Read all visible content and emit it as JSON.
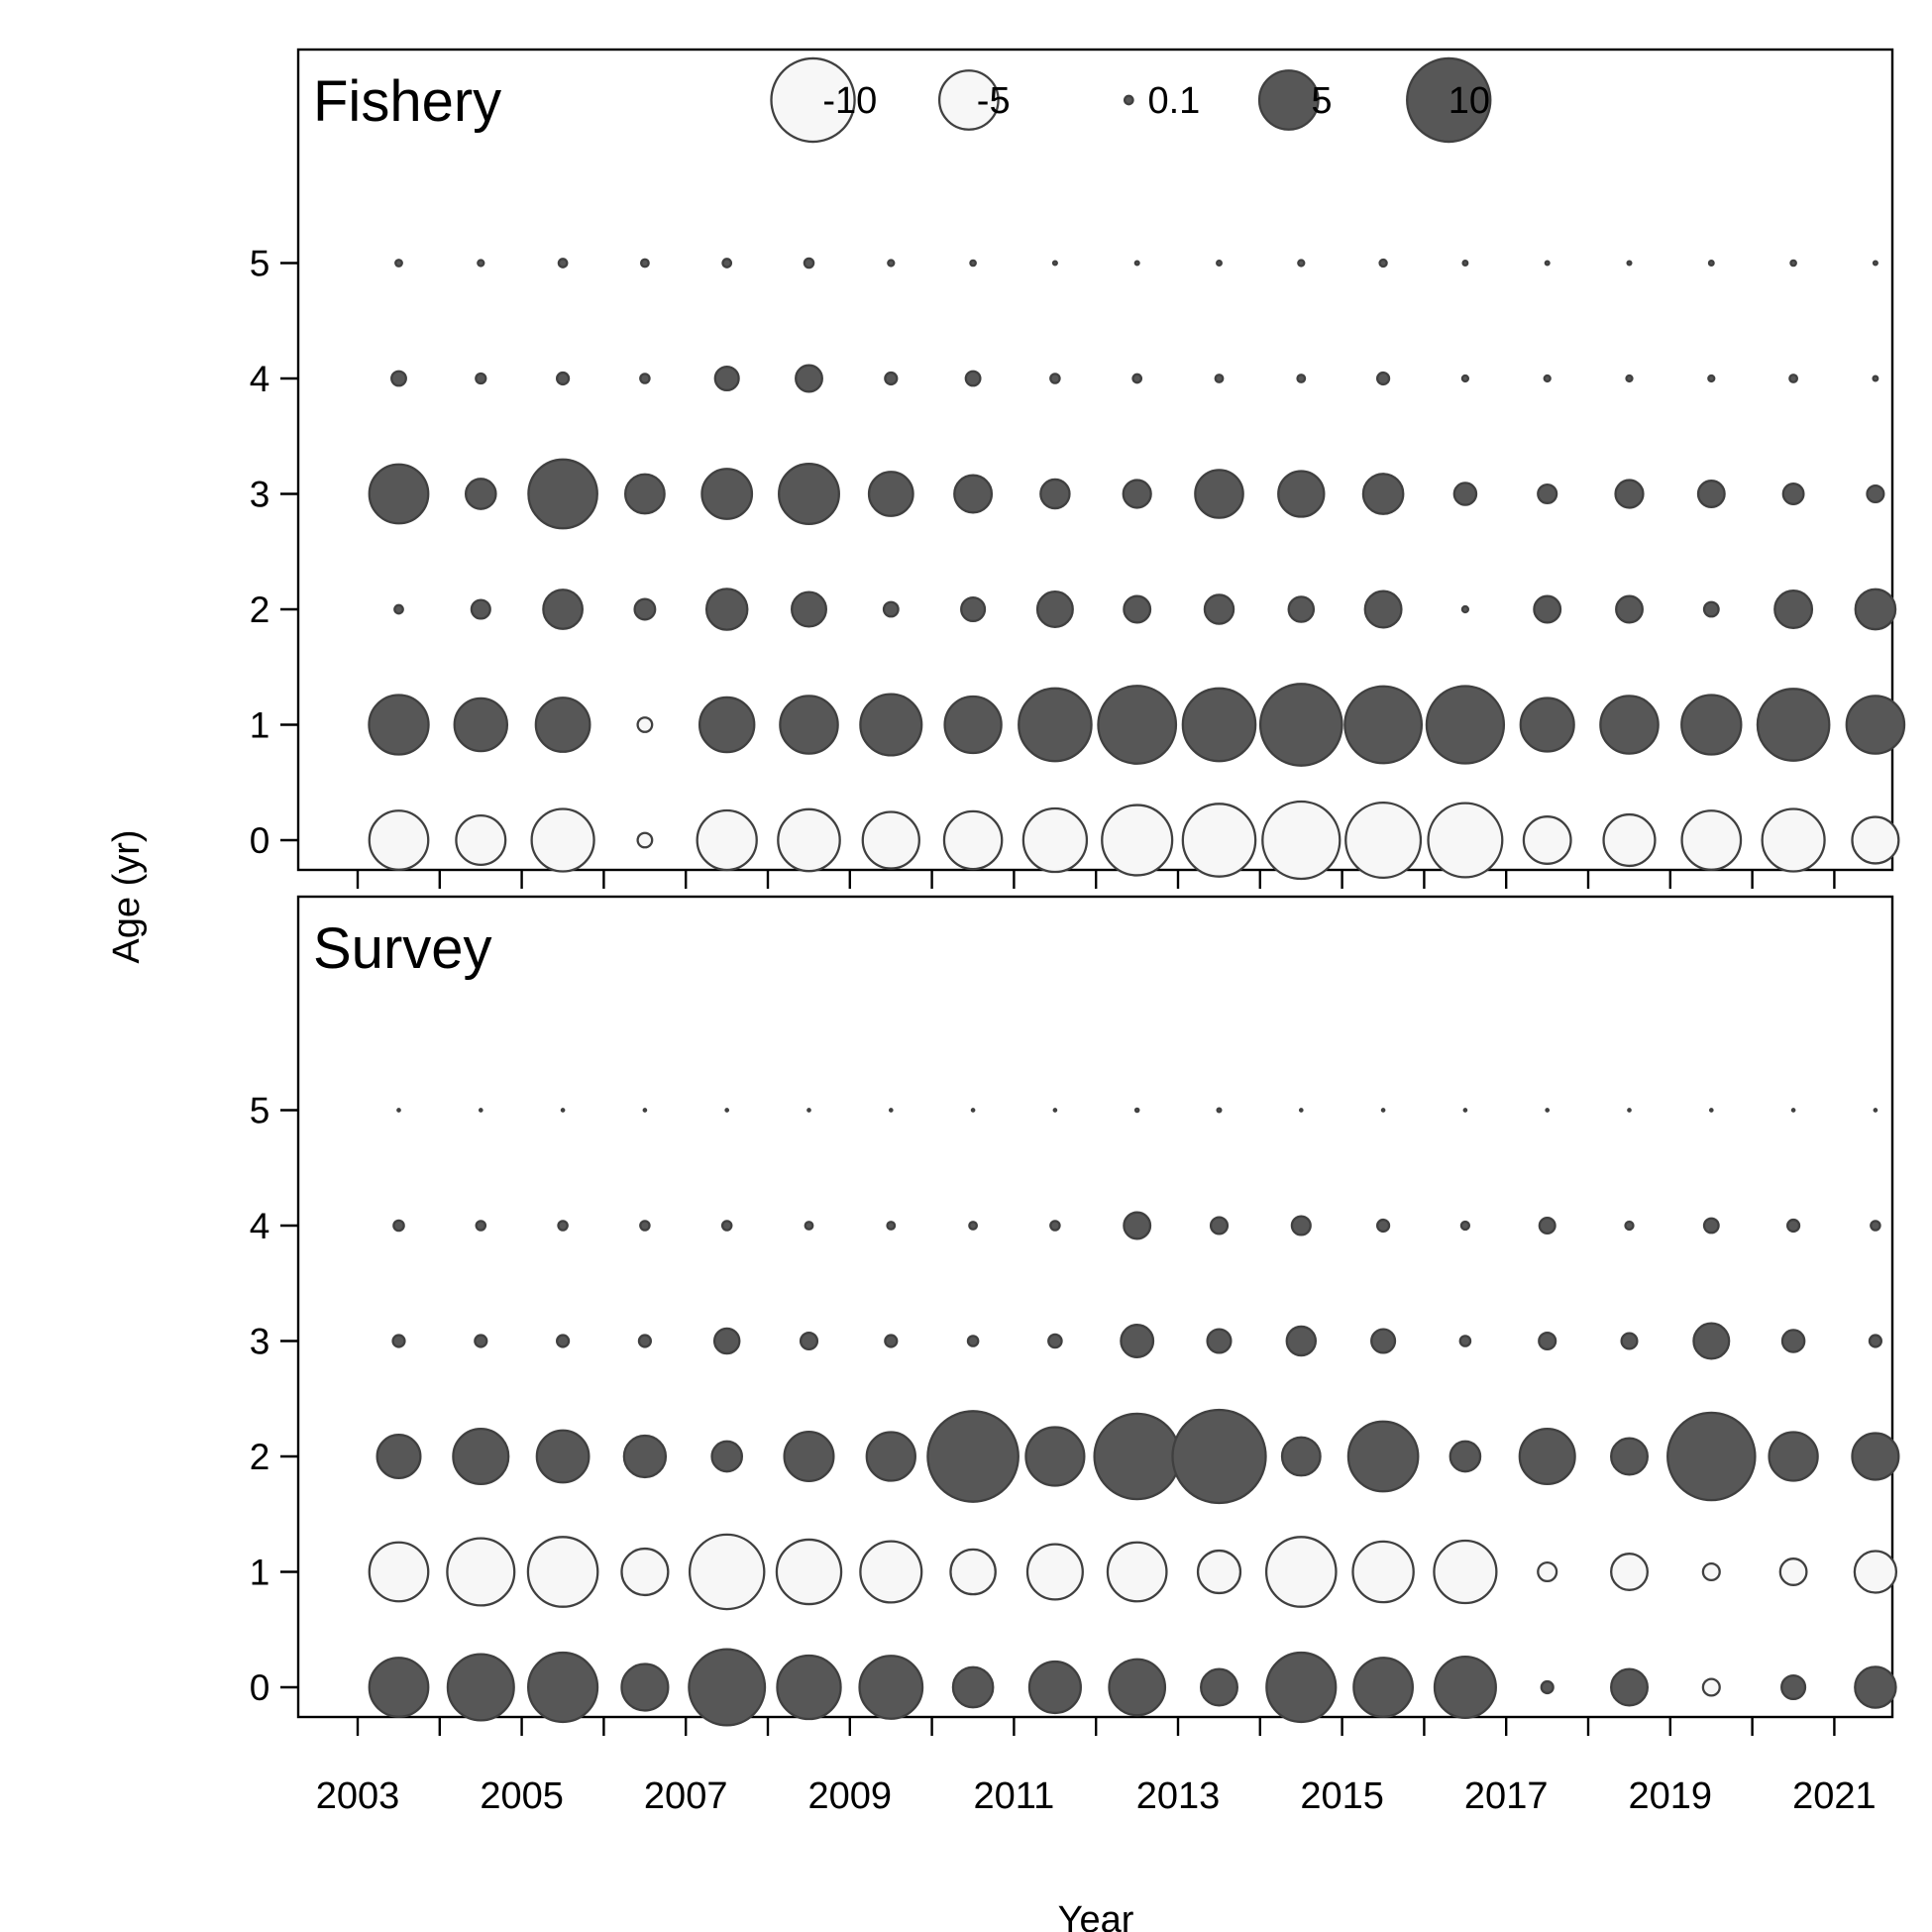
{
  "chart_data": [
    {
      "type": "bubble",
      "panel_label": "Fishery",
      "ylim": [
        0,
        5
      ],
      "yticks": [
        0,
        1,
        2,
        3,
        4,
        5
      ],
      "legend": {
        "labels": [
          "-10",
          "-5",
          "0.1",
          "5",
          "10"
        ],
        "values": [
          -10,
          -5,
          0.1,
          5,
          10
        ]
      },
      "ages": [
        0,
        1,
        2,
        3,
        4,
        5
      ],
      "years": [
        2003,
        2004,
        2005,
        2006,
        2007,
        2008,
        2009,
        2010,
        2011,
        2012,
        2013,
        2014,
        2015,
        2016,
        2017,
        2018,
        2019,
        2020,
        2021
      ],
      "residuals": [
        [
          -5.0,
          -3.5,
          -5.6,
          -0.3,
          -5.1,
          -5.5,
          -4.6,
          -4.8,
          -5.8,
          -7.1,
          -7.6,
          -8.6,
          -8.1,
          -7.9,
          -3.2,
          -3.8,
          -5.0,
          -5.6,
          -3.1
        ],
        [
          5.1,
          4.0,
          4.2,
          -0.3,
          4.3,
          4.8,
          5.4,
          4.6,
          7.6,
          8.7,
          7.6,
          9.6,
          8.5,
          8.6,
          4.1,
          4.8,
          5.1,
          7.4,
          4.8
        ],
        [
          0.1,
          0.5,
          2.2,
          0.6,
          2.4,
          1.7,
          0.3,
          0.8,
          1.8,
          1.0,
          1.2,
          0.9,
          1.9,
          0.05,
          1.0,
          1.0,
          0.3,
          2.0,
          2.3
        ],
        [
          5.0,
          1.3,
          6.8,
          2.2,
          3.6,
          5.2,
          2.8,
          2.0,
          1.2,
          1.1,
          3.3,
          3.0,
          2.3,
          0.7,
          0.5,
          1.1,
          1.0,
          0.6,
          0.4
        ],
        [
          0.3,
          0.14,
          0.2,
          0.12,
          0.8,
          1.0,
          0.2,
          0.3,
          0.12,
          0.1,
          0.08,
          0.08,
          0.2,
          0.05,
          0.05,
          0.05,
          0.05,
          0.08,
          0.03
        ],
        [
          0.06,
          0.05,
          0.1,
          0.08,
          0.1,
          0.12,
          0.05,
          0.04,
          0.02,
          0.02,
          0.03,
          0.05,
          0.07,
          0.03,
          0.02,
          0.02,
          0.03,
          0.04,
          0.02
        ]
      ]
    },
    {
      "type": "bubble",
      "panel_label": "Survey",
      "ylim": [
        0,
        5
      ],
      "yticks": [
        0,
        1,
        2,
        3,
        4,
        5
      ],
      "xticks": [
        2003,
        2005,
        2007,
        2009,
        2011,
        2013,
        2015,
        2017,
        2019,
        2021
      ],
      "xlabel": "Year",
      "ylabel": "Age (yr)",
      "ages": [
        0,
        1,
        2,
        3,
        4,
        5
      ],
      "years": [
        2003,
        2004,
        2005,
        2006,
        2007,
        2008,
        2009,
        2010,
        2011,
        2012,
        2013,
        2014,
        2015,
        2016,
        2017,
        2018,
        2019,
        2020,
        2021
      ],
      "residuals": [
        [
          5.0,
          6.3,
          6.9,
          3.1,
          8.3,
          5.8,
          5.7,
          2.3,
          3.8,
          4.5,
          1.9,
          6.9,
          5.0,
          5.4,
          0.2,
          1.9,
          -0.4,
          0.8,
          2.4
        ],
        [
          -5.0,
          -6.5,
          -7.0,
          -3.1,
          -8.0,
          -6.0,
          -5.4,
          -2.9,
          -4.4,
          -5.0,
          -2.6,
          -7.0,
          -5.3,
          -5.6,
          -0.5,
          -1.9,
          -0.4,
          -1.0,
          -2.5
        ],
        [
          2.7,
          4.4,
          3.9,
          2.5,
          1.3,
          3.5,
          3.4,
          11.8,
          4.9,
          10.5,
          12.5,
          2.1,
          7.0,
          1.3,
          4.4,
          1.9,
          11.0,
          3.4,
          3.1
        ],
        [
          0.2,
          0.2,
          0.2,
          0.2,
          0.9,
          0.4,
          0.2,
          0.15,
          0.25,
          1.5,
          0.8,
          1.2,
          0.8,
          0.15,
          0.4,
          0.35,
          1.8,
          0.7,
          0.2
        ],
        [
          0.15,
          0.12,
          0.12,
          0.12,
          0.12,
          0.08,
          0.08,
          0.08,
          0.12,
          1.0,
          0.4,
          0.5,
          0.2,
          0.09,
          0.35,
          0.09,
          0.3,
          0.2,
          0.12
        ],
        [
          0.008,
          0.008,
          0.008,
          0.008,
          0.008,
          0.008,
          0.008,
          0.008,
          0.008,
          0.015,
          0.02,
          0.008,
          0.008,
          0.008,
          0.008,
          0.008,
          0.008,
          0.008,
          0.008
        ]
      ]
    }
  ],
  "colors": {
    "positive_fill": "#575757",
    "negative_fill": "#f7f7f7",
    "outline": "#404040",
    "axis": "#000000"
  }
}
